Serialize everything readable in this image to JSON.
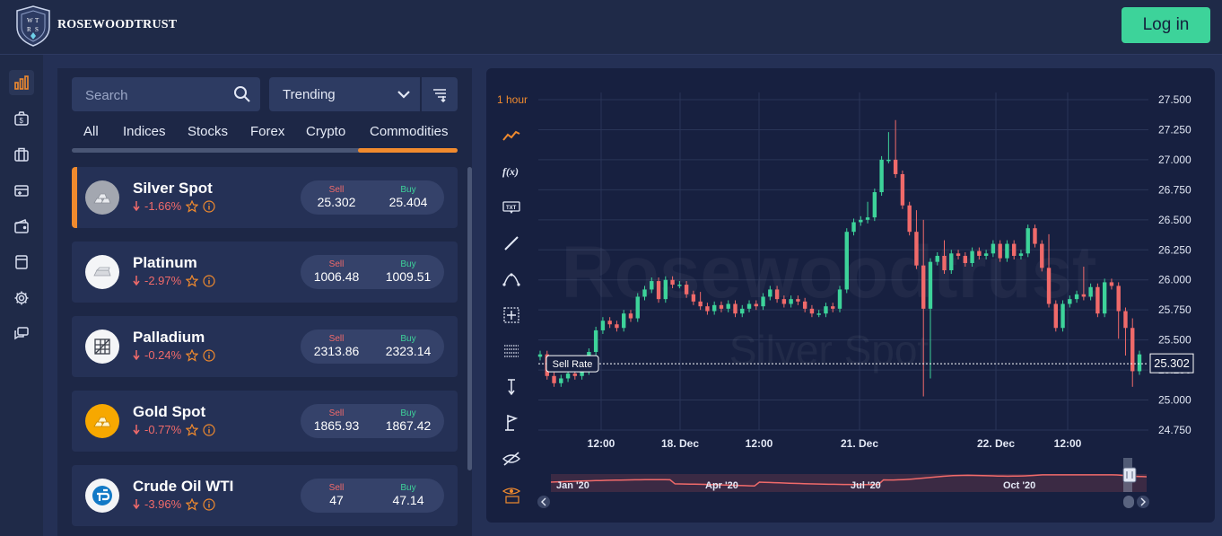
{
  "header": {
    "brand": "ROSEWOODTRUST",
    "logo_letters": "WRST",
    "login_label": "Log in"
  },
  "sidebar": {
    "items": [
      {
        "icon": "bar-chart-icon",
        "active": true
      },
      {
        "icon": "money-bag-icon"
      },
      {
        "icon": "briefcase-icon"
      },
      {
        "icon": "wallet-add-icon"
      },
      {
        "icon": "wallet-icon"
      },
      {
        "icon": "document-icon"
      },
      {
        "icon": "gear-icon"
      },
      {
        "icon": "chat-icon"
      }
    ]
  },
  "market": {
    "search_placeholder": "Search",
    "sort_label": "Trending",
    "tabs": [
      "All",
      "Indices",
      "Stocks",
      "Forex",
      "Crypto",
      "Commodities"
    ],
    "active_tab": "Commodities",
    "sell_label": "Sell",
    "buy_label": "Buy",
    "items": [
      {
        "name": "Silver Spot",
        "change": "-1.66%",
        "sell": "25.302",
        "buy": "25.404",
        "icon": "silver-bars-icon",
        "active": true
      },
      {
        "name": "Platinum",
        "change": "-2.97%",
        "sell": "1006.48",
        "buy": "1009.51",
        "icon": "platinum-bar-icon"
      },
      {
        "name": "Palladium",
        "change": "-0.24%",
        "sell": "2313.86",
        "buy": "2323.14",
        "icon": "palladium-icon"
      },
      {
        "name": "Gold Spot",
        "change": "-0.77%",
        "sell": "1865.93",
        "buy": "1867.42",
        "icon": "gold-bars-icon"
      },
      {
        "name": "Crude Oil WTI",
        "change": "-3.96%",
        "sell": "47",
        "buy": "47.14",
        "icon": "crude-oil-icon"
      }
    ]
  },
  "chart": {
    "interval": "1 hour",
    "watermark_brand": "Rosewoodtrust",
    "watermark_instrument": "Silver Spot",
    "sell_rate_label": "Sell Rate",
    "current_price": "25.302",
    "navigator_labels": [
      "Jan '20",
      "Apr '20",
      "Jul '20",
      "Oct '20"
    ],
    "toolbar": [
      "line-chart-icon",
      "function-icon",
      "text-icon",
      "trendline-icon",
      "path-icon",
      "crosshair-icon",
      "fibonacci-icon",
      "measure-icon",
      "flag-icon",
      "hide-icon",
      "zoom-icon"
    ],
    "colors": {
      "up": "#3dd39a",
      "down": "#f06a6a",
      "accent": "#f08a2e"
    }
  },
  "chart_data": {
    "type": "candlestick",
    "instrument": "Silver Spot",
    "interval": "1 hour",
    "ylim": [
      24.75,
      27.5
    ],
    "y_ticks": [
      "27.500",
      "27.250",
      "27.000",
      "26.750",
      "26.500",
      "26.250",
      "26.000",
      "25.750",
      "25.500",
      "25.250",
      "25.000",
      "24.750"
    ],
    "x_ticks": [
      "12:00",
      "18. Dec",
      "12:00",
      "21. Dec",
      "22. Dec",
      "12:00"
    ],
    "current_price": 25.302,
    "closes": [
      25.38,
      25.2,
      25.14,
      25.18,
      25.22,
      25.2,
      25.24,
      25.4,
      25.58,
      25.66,
      25.63,
      25.6,
      25.72,
      25.68,
      25.86,
      25.92,
      25.99,
      25.84,
      26.0,
      25.96,
      25.96,
      25.88,
      25.82,
      25.78,
      25.74,
      25.79,
      25.76,
      25.8,
      25.72,
      25.76,
      25.8,
      25.78,
      25.86,
      25.92,
      25.84,
      25.8,
      25.84,
      25.82,
      25.76,
      25.72,
      25.72,
      25.78,
      25.76,
      25.92,
      26.4,
      26.48,
      26.5,
      26.52,
      26.73,
      27.0,
      27.0,
      26.88,
      26.62,
      26.4,
      26.12,
      25.76,
      26.15,
      26.2,
      26.08,
      26.22,
      26.2,
      26.14,
      26.24,
      26.2,
      26.22,
      26.3,
      26.18,
      26.3,
      26.2,
      26.22,
      26.43,
      26.3,
      26.1,
      25.8,
      25.6,
      25.8,
      25.84,
      25.88,
      25.86,
      25.94,
      25.72,
      25.98,
      25.95,
      25.74,
      25.6,
      25.24,
      25.38
    ],
    "navigator_series": "Jan '20 – Dec '20"
  }
}
